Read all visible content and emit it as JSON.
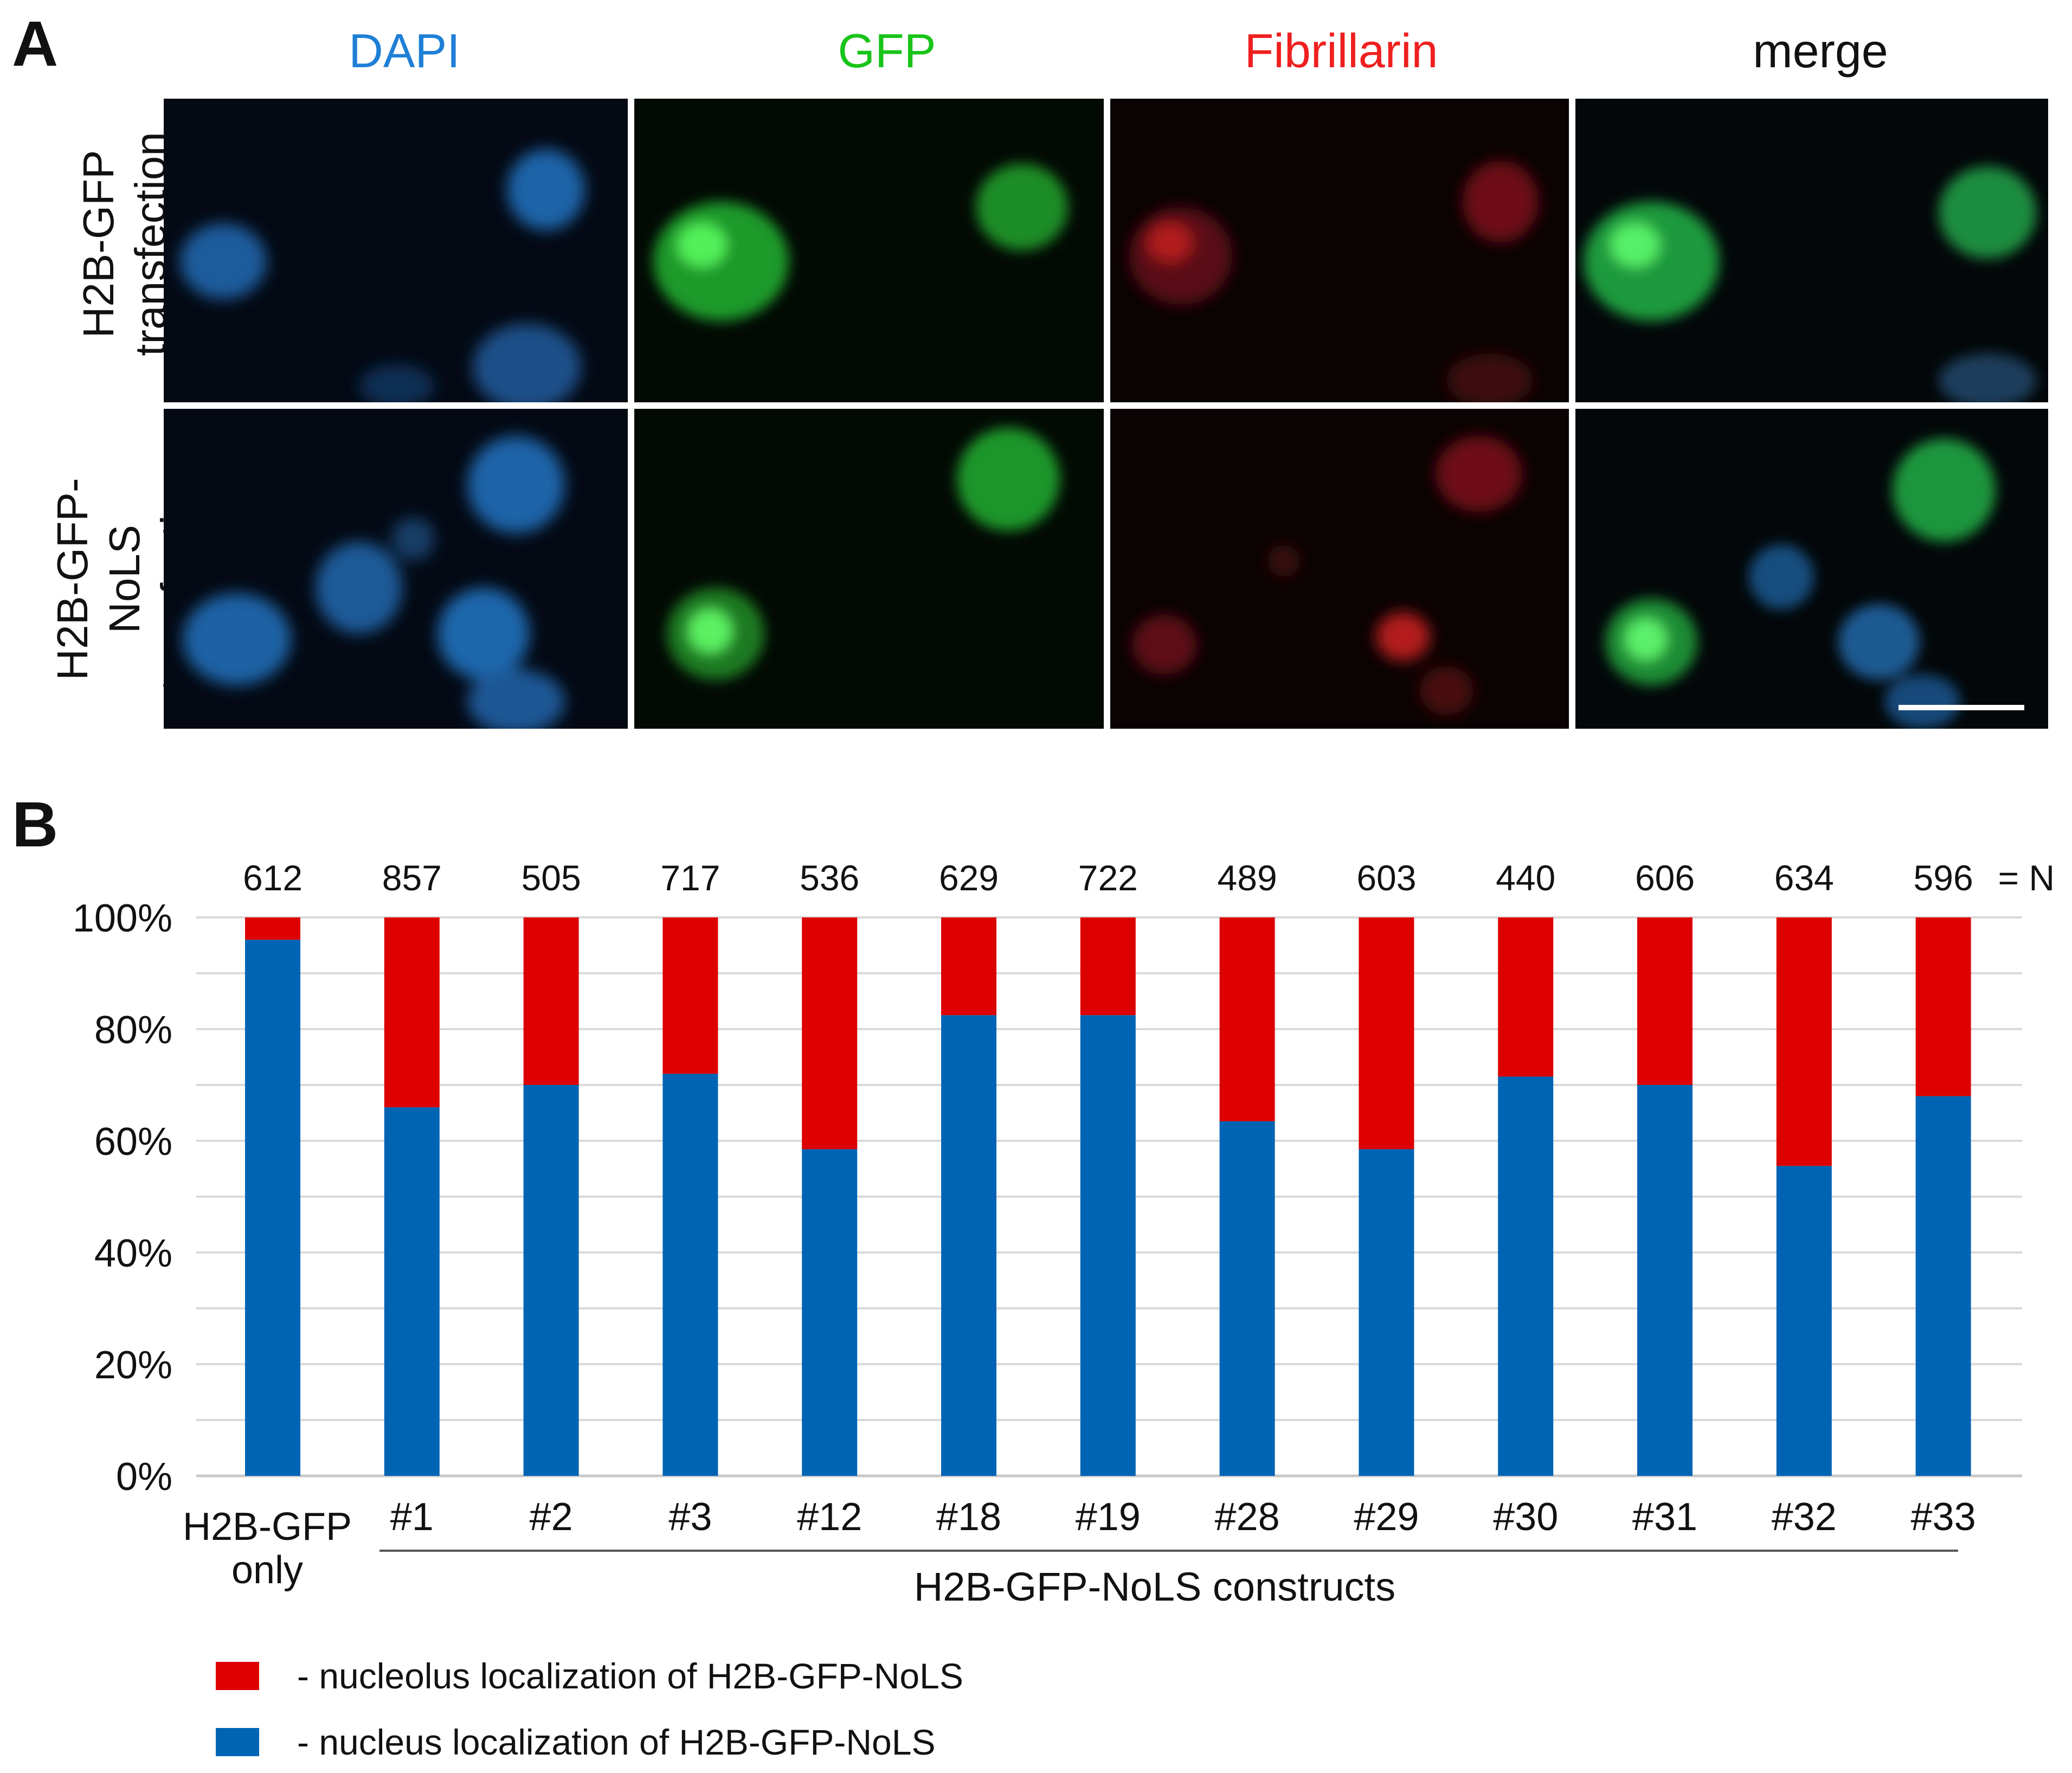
{
  "panel_a": {
    "letter": "A",
    "columns": [
      {
        "label": "DAPI",
        "color": "#1f7fd6"
      },
      {
        "label": "GFP",
        "color": "#19c419"
      },
      {
        "label": "Fibrillarin",
        "color": "#ef1f1f"
      },
      {
        "label": "merge",
        "color": "#111111"
      }
    ],
    "rows": [
      {
        "line1": "H2B-GFP",
        "line2": "transfection"
      },
      {
        "line1": "H2B-GFP-NoLS",
        "line2": "transfection"
      }
    ]
  },
  "panel_b": {
    "letter": "B",
    "n_label": "= N",
    "group_label": "H2B-GFP-NoLS constructs",
    "legend": [
      {
        "text": "- nucleolus localization of H2B-GFP-NoLS",
        "color": "#dd0000"
      },
      {
        "text": "- nucleus localization of H2B-GFP-NoLS",
        "color": "#0064b4"
      }
    ]
  },
  "chart_data": {
    "type": "bar",
    "stacked": true,
    "categories": [
      "H2B-GFP only",
      "#1",
      "#2",
      "#3",
      "#12",
      "#18",
      "#19",
      "#28",
      "#29",
      "#30",
      "#31",
      "#32",
      "#33"
    ],
    "n_values": [
      "612",
      "857",
      "505",
      "717",
      "536",
      "629",
      "722",
      "489",
      "603",
      "440",
      "606",
      "634",
      "596"
    ],
    "series": [
      {
        "name": "nucleus localization of H2B-GFP-NoLS",
        "color": "#0064b4",
        "values": [
          96,
          66,
          70,
          72,
          58.5,
          82.5,
          82.5,
          63.5,
          58.5,
          71.5,
          70,
          55.5,
          68
        ]
      },
      {
        "name": "nucleolus localization of H2B-GFP-NoLS",
        "color": "#dd0000",
        "values": [
          4,
          34,
          30,
          28,
          41.5,
          17.5,
          17.5,
          36.5,
          41.5,
          28.5,
          30,
          44.5,
          32
        ]
      }
    ],
    "yticks": [
      "0%",
      "20%",
      "40%",
      "60%",
      "80%",
      "100%"
    ],
    "ylim": [
      0,
      100
    ],
    "grid": true
  }
}
